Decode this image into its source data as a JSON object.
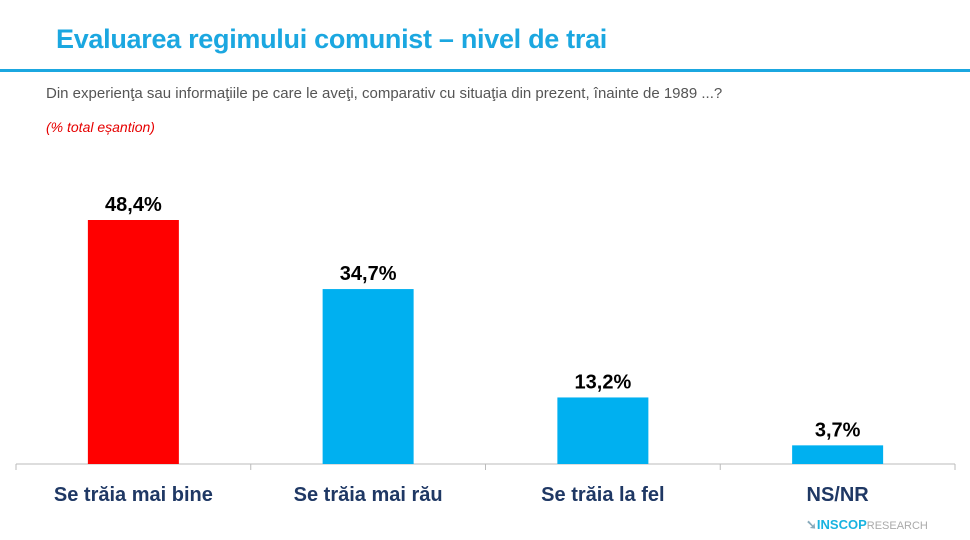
{
  "title": "Evaluarea regimului comunist – nivel de trai",
  "question": "Din experienţa sau informaţiile pe care le aveţi, comparativ cu situaţia din prezent, înainte de 1989 ...?",
  "note": "(% total eșantion)",
  "logo": {
    "brand": "INSCOP",
    "suffix": "RESEARCH"
  },
  "chart_data": {
    "type": "bar",
    "categories": [
      "Se trăia mai bine",
      "Se trăia mai rău",
      "Se trăia la fel",
      "NS/NR"
    ],
    "values": [
      48.4,
      34.7,
      13.2,
      3.7
    ],
    "labels": [
      "48,4%",
      "34,7%",
      "13,2%",
      "3,7%"
    ],
    "colors": [
      "#ff0000",
      "#00b0f0",
      "#00b0f0",
      "#00b0f0"
    ],
    "ylim": [
      0,
      48.4
    ],
    "grid": false
  }
}
